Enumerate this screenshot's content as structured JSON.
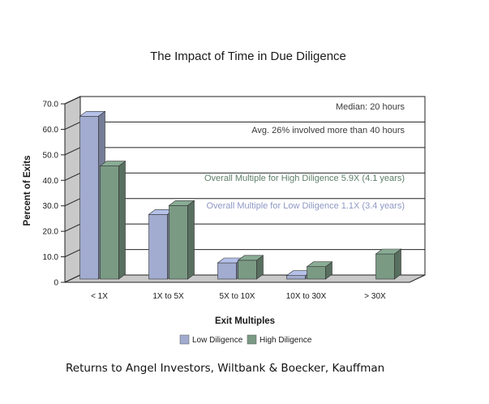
{
  "chart_data": {
    "type": "bar",
    "title": "The Impact of Time in Due Diligence",
    "xlabel": "Exit Multiples",
    "ylabel": "Percent of Exits",
    "categories": [
      "< 1X",
      "1X to 5X",
      "5X to 10X",
      "10X to 30X",
      "> 30X"
    ],
    "series": [
      {
        "name": "Low Diligence",
        "color": "#a2acd0",
        "values": [
          64.5,
          26,
          7,
          2,
          0
        ]
      },
      {
        "name": "High Diligence",
        "color": "#7a9a84",
        "values": [
          45,
          29.5,
          8,
          5.5,
          10.5
        ]
      }
    ],
    "ylim": [
      0,
      70
    ],
    "yticks": [
      "0",
      "10.0",
      "20.0",
      "30.0",
      "40.0",
      "50.0",
      "60.0",
      "70.0"
    ],
    "annotations": [
      {
        "text": "Median: 20 hours",
        "color": "#3a3a3a"
      },
      {
        "text": "Avg. 26% involved more than 40 hours",
        "color": "#3a3a3a"
      },
      {
        "text": "Overall Multiple for High Diligence 5.9X (4.1 years)",
        "color": "#5e7f69"
      },
      {
        "text": "Overall Multiple for Low Diligence 1.1X (3.4 years)",
        "color": "#8e98c4"
      }
    ],
    "grid": true,
    "legend": "bottom-center"
  },
  "source": "Returns to Angel Investors, Wiltbank & Boecker, Kauffman"
}
